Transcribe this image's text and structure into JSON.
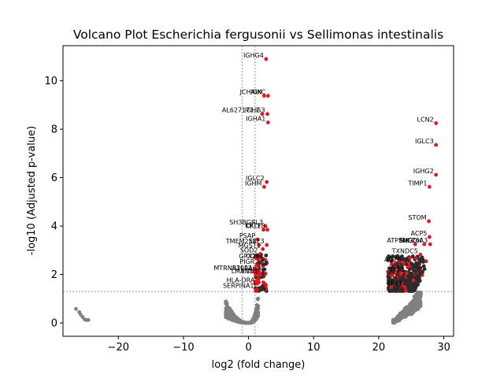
{
  "chart_data": {
    "type": "scatter",
    "title": "Volcano Plot Escherichia fergusonii vs Sellimonas intestinalis",
    "xlabel": "log2 (fold change)",
    "ylabel": "-log10 (Adjusted p-value)",
    "xlim": [
      -28.5,
      31.5
    ],
    "ylim": [
      -0.55,
      11.45
    ],
    "xticks": [
      -20,
      -10,
      0,
      10,
      20,
      30
    ],
    "yticks": [
      0,
      2,
      4,
      6,
      8,
      10
    ],
    "xtick_labels": [
      "−20",
      "−10",
      "0",
      "10",
      "20",
      "30"
    ],
    "ytick_labels": [
      "0",
      "2",
      "4",
      "6",
      "8",
      "10"
    ],
    "grid": false,
    "threshold_lines": {
      "vertical": [
        -1,
        1
      ],
      "horizontal": 1.3
    },
    "colors": {
      "significant": "#e8141b",
      "nonsignificant": "#808080",
      "threshold": "#808080"
    },
    "significant_points": [
      {
        "label": "IGHG4",
        "x": 2.7,
        "y": 10.9
      },
      {
        "label": "JCHAIN",
        "x": 2.4,
        "y": 9.38
      },
      {
        "label": "IGKC",
        "x": 3.0,
        "y": 9.38
      },
      {
        "label": "AL627171.2",
        "x": 2.1,
        "y": 8.63
      },
      {
        "label": "IGHG3",
        "x": 2.9,
        "y": 8.63
      },
      {
        "label": "IGHA1",
        "x": 3.0,
        "y": 8.28
      },
      {
        "label": "IGLC2",
        "x": 2.8,
        "y": 5.82
      },
      {
        "label": "IGHM",
        "x": 2.4,
        "y": 5.62
      },
      {
        "label": "SH3BGRL3",
        "x": 2.6,
        "y": 4.0
      },
      {
        "label": "CKLF",
        "x": 2.3,
        "y": 3.85
      },
      {
        "label": "KRT18",
        "x": 2.9,
        "y": 3.85
      },
      {
        "label": "PSAP",
        "x": 1.4,
        "y": 3.45
      },
      {
        "label": "TMEM258",
        "x": 1.6,
        "y": 3.22
      },
      {
        "label": "ELF3",
        "x": 2.8,
        "y": 3.22
      },
      {
        "label": "MGST1",
        "x": 2.2,
        "y": 3.05
      },
      {
        "label": "SOD2",
        "x": 1.8,
        "y": 2.85
      },
      {
        "label": "GPX2",
        "x": 1.5,
        "y": 2.6
      },
      {
        "label": "CD74",
        "x": 2.6,
        "y": 2.6
      },
      {
        "label": "PIGR",
        "x": 1.3,
        "y": 2.38
      },
      {
        "label": "MTRNR2L12",
        "x": 0.9,
        "y": 2.12
      },
      {
        "label": "S100A6",
        "x": 1.6,
        "y": 2.12
      },
      {
        "label": "LMAN1",
        "x": 1.1,
        "y": 1.98
      },
      {
        "label": "FTH1",
        "x": 1.8,
        "y": 1.98
      },
      {
        "label": "HLA-DRA",
        "x": 1.3,
        "y": 1.62
      },
      {
        "label": "SERPINA1",
        "x": 1.2,
        "y": 1.38
      },
      {
        "label": "LCN2",
        "x": 28.8,
        "y": 8.25
      },
      {
        "label": "IGLC3",
        "x": 28.8,
        "y": 7.35
      },
      {
        "label": "IGHG2",
        "x": 28.8,
        "y": 6.12
      },
      {
        "label": "TIMP1",
        "x": 27.8,
        "y": 5.62
      },
      {
        "label": "STOM",
        "x": 27.7,
        "y": 4.2
      },
      {
        "label": "ACP5",
        "x": 27.8,
        "y": 3.55
      },
      {
        "label": "ATP5MD",
        "x": 25.6,
        "y": 3.25
      },
      {
        "label": "PHGDH",
        "x": 27.0,
        "y": 3.25
      },
      {
        "label": "SLC26A3",
        "x": 27.9,
        "y": 3.25
      },
      {
        "label": "TXNDC5",
        "x": 26.4,
        "y": 2.82
      },
      {
        "label": "ACTB",
        "x": 23.8,
        "y": 2.48
      },
      {
        "label": "TFF3",
        "x": 24.3,
        "y": 2.05
      },
      {
        "label": "TPT1",
        "x": 24.0,
        "y": 1.48
      }
    ]
  }
}
